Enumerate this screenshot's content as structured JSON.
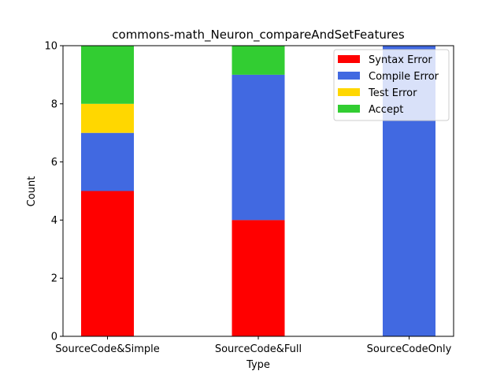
{
  "chart_data": {
    "type": "bar",
    "stacked": true,
    "title": "commons-math_Neuron_compareAndSetFeatures",
    "xlabel": "Type",
    "ylabel": "Count",
    "categories": [
      "SourceCode&Simple",
      "SourceCode&Full",
      "SourceCodeOnly"
    ],
    "ylim": [
      0,
      10
    ],
    "yticks": [
      0,
      2,
      4,
      6,
      8,
      10
    ],
    "grid": false,
    "legend_position": "top-right",
    "series": [
      {
        "name": "Syntax Error",
        "color": "#ff0000",
        "values": [
          5,
          4,
          0
        ]
      },
      {
        "name": "Compile Error",
        "color": "#4169e1",
        "values": [
          2,
          5,
          10
        ]
      },
      {
        "name": "Test Error",
        "color": "#ffd700",
        "values": [
          1,
          0,
          0
        ]
      },
      {
        "name": "Accept",
        "color": "#32cd32",
        "values": [
          2,
          1,
          0
        ]
      }
    ]
  }
}
